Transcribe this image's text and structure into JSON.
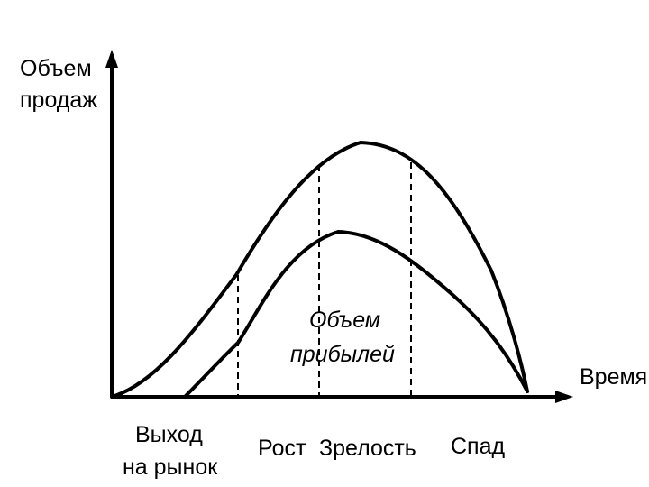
{
  "axes": {
    "y_label_line1": "Объем",
    "y_label_line2": "продаж",
    "x_label": "Время"
  },
  "curves": {
    "sales": "sales-curve",
    "profit": "profit-curve"
  },
  "profit_label": {
    "line1": "Объем",
    "line2": "прибылей"
  },
  "stages": {
    "entry_line1": "Выход",
    "entry_line2": "на рынок",
    "growth": "Рост",
    "maturity": "Зрелость",
    "decline": "Спад"
  },
  "colors": {
    "ink": "#000000",
    "background": "#ffffff"
  }
}
